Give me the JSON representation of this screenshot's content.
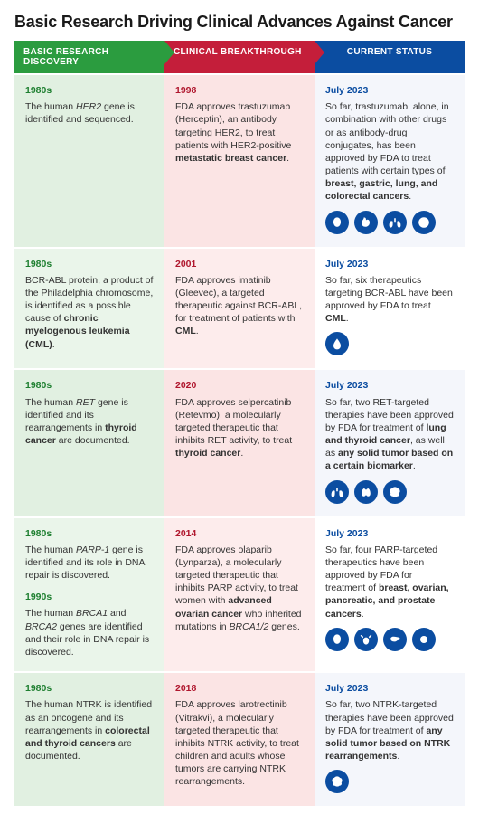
{
  "title": "Basic Research Driving Clinical Advances Against Cancer",
  "columns": {
    "discovery": {
      "label": "BASIC RESEARCH DISCOVERY",
      "color": "#2b9c3f",
      "tint": "#eaf5ea"
    },
    "breakthrough": {
      "label": "CLINICAL BREAKTHROUGH",
      "color": "#c41e3a",
      "tint": "#fdecec"
    },
    "status": {
      "label": "CURRENT STATUS",
      "color": "#0b4da1",
      "tint": "#ffffff"
    }
  },
  "icon_color": "#0b4da1",
  "rows": [
    {
      "discovery": [
        {
          "date": "1980s",
          "html": "The human <i>HER2</i> gene is identified and sequenced."
        }
      ],
      "breakthrough": [
        {
          "date": "1998",
          "html": "FDA approves trastuzumab (Herceptin), an antibody targeting HER2, to treat patients with HER2-positive <b>metastatic breast cancer</b>."
        }
      ],
      "status": [
        {
          "date": "July 2023",
          "html": "So far, trastuzumab, alone, in combination with other drugs or as antibody-drug conjugates, has been approved by FDA to treat patients with certain types of <b>breast, gastric, lung, and colorectal cancers</b>."
        }
      ],
      "icons": [
        "breast",
        "gastric",
        "lung",
        "colorectal"
      ]
    },
    {
      "discovery": [
        {
          "date": "1980s",
          "html": "BCR-ABL protein, a product of the Philadelphia chromosome, is identified as a possible cause of <b>chronic myelogenous leukemia (CML)</b>."
        }
      ],
      "breakthrough": [
        {
          "date": "2001",
          "html": "FDA approves imatinib (Gleevec), a targeted therapeutic against BCR-ABL, for treatment of patients with <b>CML</b>."
        }
      ],
      "status": [
        {
          "date": "July 2023",
          "html": "So far, six therapeutics targeting BCR-ABL have been approved by FDA to treat <b>CML</b>."
        }
      ],
      "icons": [
        "blood"
      ]
    },
    {
      "discovery": [
        {
          "date": "1980s",
          "html": "The human <i>RET</i> gene is identified and its rearrangements in <b>thyroid cancer</b> are documented."
        }
      ],
      "breakthrough": [
        {
          "date": "2020",
          "html": "FDA approves selpercatinib (Retevmo), a molecularly targeted therapeutic that inhibits RET activity, to treat <b>thyroid cancer</b>."
        }
      ],
      "status": [
        {
          "date": "July 2023",
          "html": "So far, two RET-targeted therapies have been approved by FDA for treatment of <b>lung and thyroid cancer</b>, as well as <b>any solid tumor based on a certain biomarker</b>."
        }
      ],
      "icons": [
        "lung",
        "thyroid",
        "tumor"
      ]
    },
    {
      "discovery": [
        {
          "date": "1980s",
          "html": "The human <i>PARP-1</i> gene is identified and its role in DNA repair is discovered."
        },
        {
          "date": "1990s",
          "html": "The human <i>BRCA1</i> and <i>BRCA2</i> genes are identified and their role in DNA repair is discovered."
        }
      ],
      "breakthrough": [
        {
          "date": "2014",
          "html": "FDA approves olaparib (Lynparza), a molecularly targeted therapeutic that inhibits PARP activity, to treat women with <b>advanced ovarian cancer</b> who inherited mutations in <i>BRCA1/2</i> genes."
        }
      ],
      "status": [
        {
          "date": "July 2023",
          "html": "So far, four PARP-targeted therapeutics have been approved by FDA for treatment of <b>breast, ovarian, pancreatic, and prostate cancers</b>."
        }
      ],
      "icons": [
        "breast",
        "ovarian",
        "pancreatic",
        "prostate"
      ]
    },
    {
      "discovery": [
        {
          "date": "1980s",
          "html": "The human NTRK is identified as an oncogene and its rearrangements in <b>colorectal and thyroid cancers</b> are documented."
        }
      ],
      "breakthrough": [
        {
          "date": "2018",
          "html": "FDA approves larotrectinib (Vitrakvi), a molecularly targeted therapeutic that inhibits NTRK activity, to treat children and adults whose tumors are carrying NTRK rearrangements."
        }
      ],
      "status": [
        {
          "date": "July 2023",
          "html": "So far, two NTRK-targeted therapies have been approved by FDA for treatment of <b>any solid tumor based on NTRK rearrangements</b>."
        }
      ],
      "icons": [
        "tumor"
      ]
    }
  ]
}
